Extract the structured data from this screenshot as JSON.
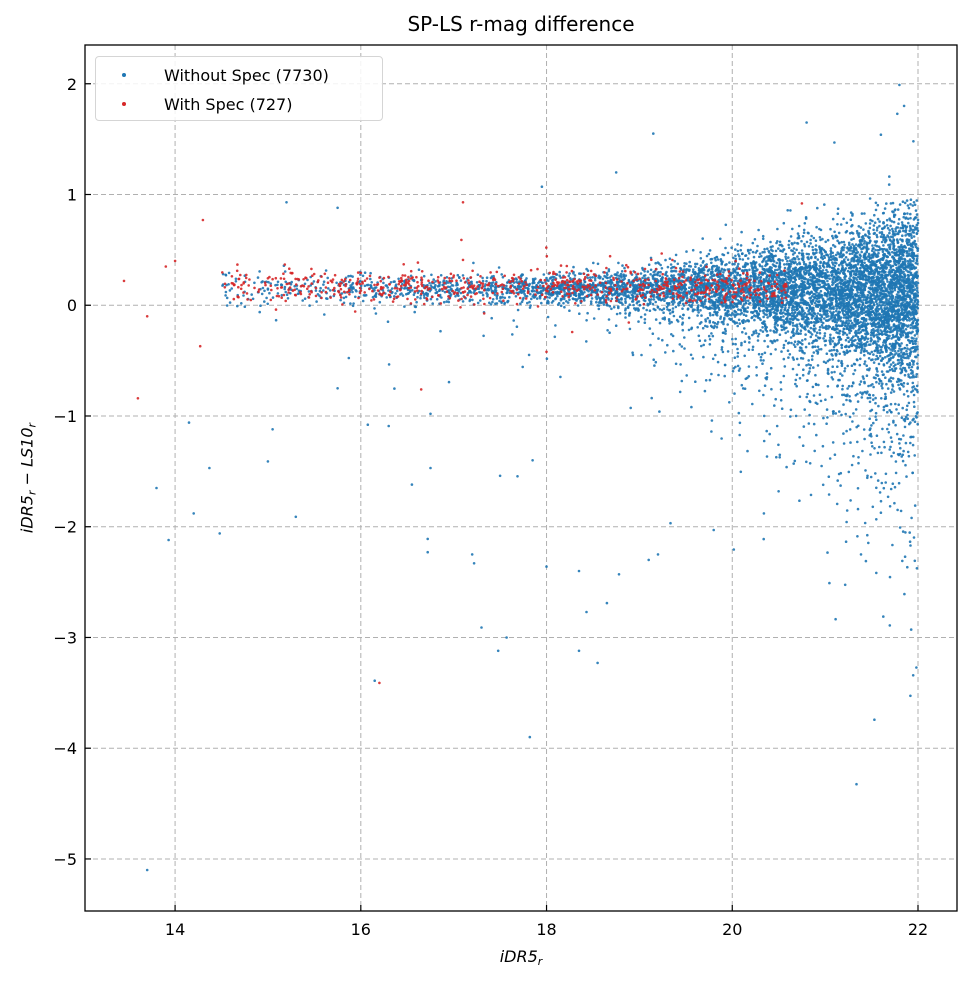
{
  "chart_data": {
    "type": "scatter",
    "title": "SP-LS r-mag difference",
    "xlabel": {
      "main": "iDR5",
      "sub": "r"
    },
    "ylabel": {
      "a": "iDR5",
      "a_sub": "r",
      "minus": " − ",
      "b": "LS10",
      "b_sub": "r"
    },
    "xlim": [
      13.03,
      22.42
    ],
    "ylim": [
      -5.47,
      2.35
    ],
    "xticks": [
      14,
      16,
      18,
      20,
      22
    ],
    "yticks": [
      2,
      1,
      0,
      -1,
      -2,
      -3,
      -4,
      -5
    ],
    "ytick_labels": [
      "2",
      "1",
      "0",
      "−1",
      "−2",
      "−3",
      "−4",
      "−5"
    ],
    "grid": true,
    "legend_position": "top-left",
    "series": [
      {
        "name": "Without Spec (7730)",
        "count": 7730,
        "color": "#1f77b4",
        "bulk_model": {
          "x_range": [
            14.5,
            22.0
          ],
          "x_density_slope": 0.55,
          "y_center": 0.15,
          "seed": 7
        },
        "outliers": [
          [
            13.7,
            -5.1
          ],
          [
            13.8,
            -1.65
          ],
          [
            13.93,
            -2.12
          ],
          [
            14.15,
            -1.06
          ],
          [
            14.2,
            -1.88
          ],
          [
            14.37,
            -1.47
          ],
          [
            14.48,
            -2.06
          ],
          [
            15.0,
            -1.41
          ],
          [
            15.05,
            -1.12
          ],
          [
            15.3,
            -1.91
          ],
          [
            15.2,
            0.93
          ],
          [
            15.75,
            0.88
          ],
          [
            15.75,
            -0.75
          ],
          [
            16.15,
            -3.39
          ],
          [
            16.72,
            -2.11
          ],
          [
            16.72,
            -2.23
          ],
          [
            17.2,
            -2.25
          ],
          [
            17.22,
            -2.33
          ],
          [
            17.3,
            -2.91
          ],
          [
            17.48,
            -3.12
          ],
          [
            17.57,
            -3.0
          ],
          [
            17.82,
            -3.9
          ],
          [
            18.35,
            -3.12
          ],
          [
            18.43,
            -2.77
          ],
          [
            18.55,
            -3.23
          ],
          [
            18.65,
            -2.69
          ],
          [
            18.78,
            -2.43
          ],
          [
            19.15,
            1.55
          ],
          [
            18.75,
            1.2
          ],
          [
            21.8,
            1.99
          ],
          [
            21.85,
            1.8
          ],
          [
            20.8,
            1.65
          ],
          [
            21.1,
            1.47
          ],
          [
            17.95,
            1.07
          ],
          [
            16.3,
            -1.09
          ],
          [
            16.55,
            -1.62
          ],
          [
            16.75,
            -1.47
          ],
          [
            18.0,
            -2.36
          ],
          [
            18.35,
            -2.4
          ],
          [
            19.1,
            -2.3
          ],
          [
            19.2,
            -2.25
          ],
          [
            19.8,
            -2.03
          ],
          [
            16.75,
            -0.98
          ],
          [
            17.5,
            -1.54
          ],
          [
            17.85,
            -1.4
          ],
          [
            21.95,
            1.48
          ],
          [
            21.6,
            1.54
          ]
        ]
      },
      {
        "name": "With Spec (727)",
        "count": 727,
        "color": "#d62728",
        "bulk_model": {
          "x_range": [
            14.5,
            20.6
          ],
          "y_center": 0.17,
          "seed": 11
        },
        "outliers": [
          [
            13.45,
            0.22
          ],
          [
            13.6,
            -0.84
          ],
          [
            13.7,
            -0.1
          ],
          [
            13.9,
            0.35
          ],
          [
            14.3,
            0.77
          ],
          [
            14.27,
            -0.37
          ],
          [
            16.2,
            -3.41
          ],
          [
            17.1,
            0.93
          ],
          [
            16.65,
            -0.76
          ],
          [
            18.0,
            -0.42
          ],
          [
            20.75,
            0.92
          ],
          [
            14.0,
            0.4
          ]
        ]
      }
    ]
  }
}
